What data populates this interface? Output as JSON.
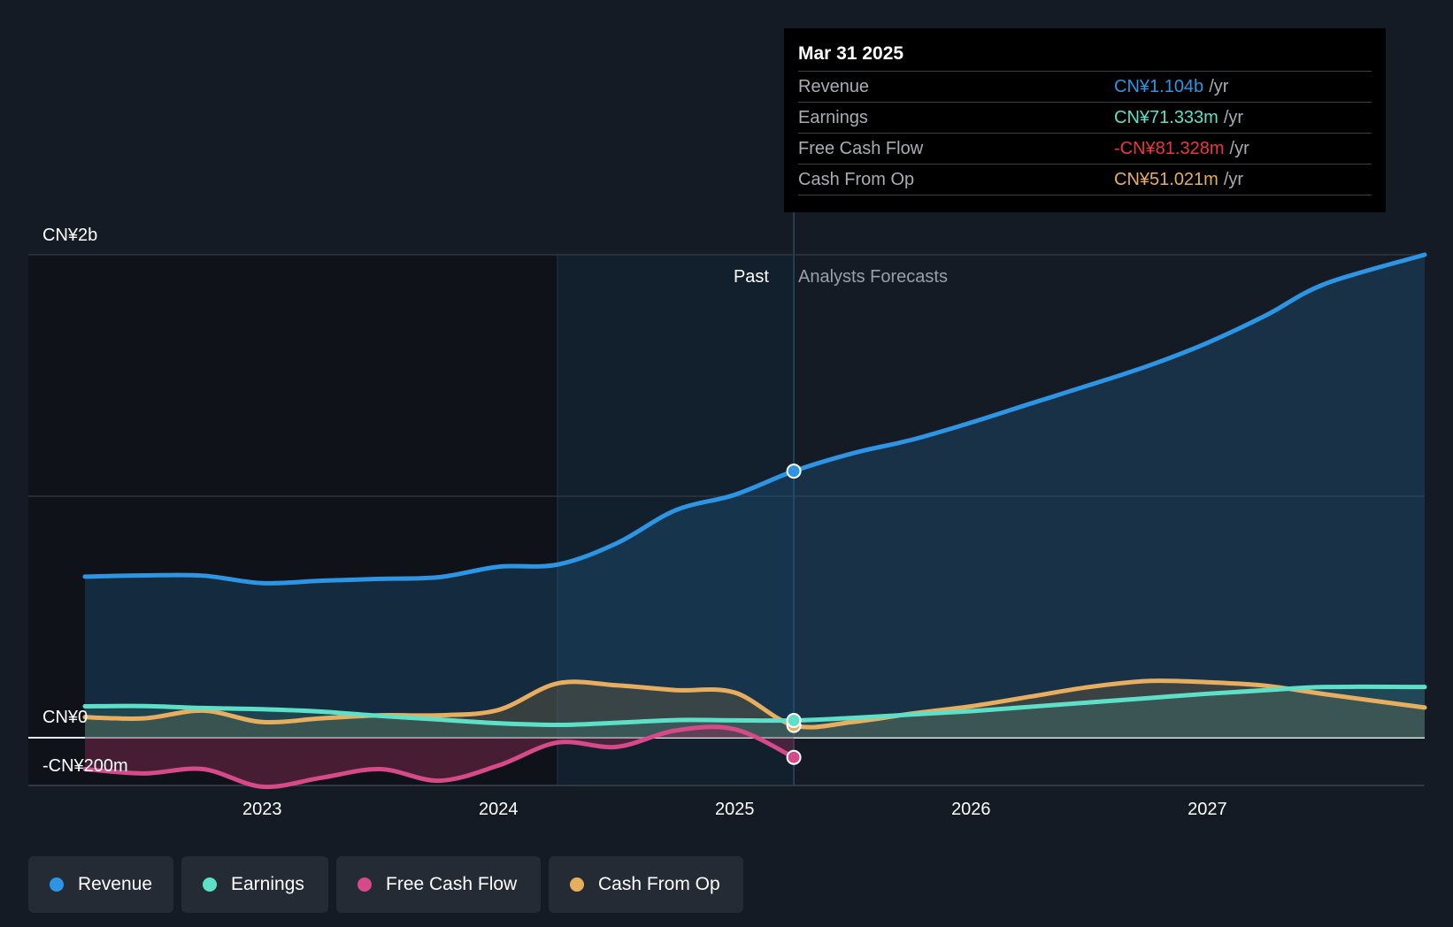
{
  "chart_data": {
    "type": "line",
    "title": "",
    "currency_axis": {
      "top_label": "CN¥2b",
      "zero_label": "CN¥0",
      "bottom_label": "-CN¥200m",
      "ylim": [
        -200,
        2000
      ],
      "unit": "CN¥ millions"
    },
    "x_ticks": [
      "2023",
      "2024",
      "2025",
      "2026",
      "2027"
    ],
    "x_range": [
      2022.25,
      2027.92
    ],
    "past_label": "Past",
    "forecast_label": "Analysts Forecasts",
    "present_x": 2025.25,
    "highlight_start_x": 2024.25,
    "series": [
      {
        "name": "Revenue",
        "color": "#2d95e3",
        "points": [
          [
            2022.25,
            667
          ],
          [
            2022.5,
            672
          ],
          [
            2022.75,
            671
          ],
          [
            2023.0,
            640
          ],
          [
            2023.25,
            650
          ],
          [
            2023.5,
            658
          ],
          [
            2023.75,
            665
          ],
          [
            2024.0,
            708
          ],
          [
            2024.25,
            717
          ],
          [
            2024.5,
            805
          ],
          [
            2024.75,
            942
          ],
          [
            2025.0,
            1006
          ],
          [
            2025.25,
            1104
          ]
        ],
        "forecast": [
          [
            2025.25,
            1104
          ],
          [
            2025.5,
            1178
          ],
          [
            2025.75,
            1234
          ],
          [
            2026.0,
            1305
          ],
          [
            2026.25,
            1383
          ],
          [
            2026.5,
            1460
          ],
          [
            2026.75,
            1540
          ],
          [
            2027.0,
            1635
          ],
          [
            2027.25,
            1750
          ],
          [
            2027.5,
            1880
          ],
          [
            2027.92,
            2000
          ]
        ]
      },
      {
        "name": "Earnings",
        "color": "#5ee0c8",
        "points": [
          [
            2022.25,
            130
          ],
          [
            2022.5,
            131
          ],
          [
            2022.75,
            123
          ],
          [
            2023.0,
            118
          ],
          [
            2023.25,
            108
          ],
          [
            2023.5,
            90
          ],
          [
            2023.75,
            75
          ],
          [
            2024.0,
            60
          ],
          [
            2024.25,
            53
          ],
          [
            2024.5,
            62
          ],
          [
            2024.75,
            73
          ],
          [
            2025.0,
            72
          ],
          [
            2025.25,
            71.333
          ]
        ],
        "forecast": [
          [
            2025.25,
            71.333
          ],
          [
            2025.5,
            82
          ],
          [
            2025.75,
            96
          ],
          [
            2026.0,
            110
          ],
          [
            2026.25,
            128
          ],
          [
            2026.5,
            146
          ],
          [
            2026.75,
            164
          ],
          [
            2027.0,
            182
          ],
          [
            2027.25,
            197
          ],
          [
            2027.5,
            210
          ],
          [
            2027.92,
            210
          ]
        ]
      },
      {
        "name": "Free Cash Flow",
        "color": "#d64a8a",
        "points": [
          [
            2022.25,
            -130
          ],
          [
            2022.5,
            -148
          ],
          [
            2022.75,
            -130
          ],
          [
            2023.0,
            -203
          ],
          [
            2023.25,
            -166
          ],
          [
            2023.5,
            -130
          ],
          [
            2023.75,
            -178
          ],
          [
            2024.0,
            -115
          ],
          [
            2024.25,
            -20
          ],
          [
            2024.5,
            -38
          ],
          [
            2024.75,
            30
          ],
          [
            2025.0,
            35
          ],
          [
            2025.25,
            -81.328
          ]
        ],
        "forecast": []
      },
      {
        "name": "Cash From Op",
        "color": "#e8ae5f",
        "points": [
          [
            2022.25,
            85
          ],
          [
            2022.5,
            80
          ],
          [
            2022.75,
            112
          ],
          [
            2023.0,
            65
          ],
          [
            2023.25,
            80
          ],
          [
            2023.5,
            93
          ],
          [
            2023.75,
            93
          ],
          [
            2024.0,
            115
          ],
          [
            2024.25,
            225
          ],
          [
            2024.5,
            217
          ],
          [
            2024.75,
            197
          ],
          [
            2025.0,
            187
          ],
          [
            2025.25,
            51.021
          ]
        ],
        "forecast": [
          [
            2025.25,
            51.021
          ],
          [
            2025.5,
            65
          ],
          [
            2025.75,
            100
          ],
          [
            2026.0,
            130
          ],
          [
            2026.25,
            170
          ],
          [
            2026.5,
            210
          ],
          [
            2026.75,
            235
          ],
          [
            2027.0,
            230
          ],
          [
            2027.25,
            215
          ],
          [
            2027.5,
            180
          ],
          [
            2027.92,
            125
          ]
        ]
      }
    ]
  },
  "tooltip": {
    "date": "Mar 31 2025",
    "rows": [
      {
        "name": "Revenue",
        "value": "CN¥1.104b",
        "unit": "/yr",
        "color": "#2d95e3"
      },
      {
        "name": "Earnings",
        "value": "CN¥71.333m",
        "unit": "/yr",
        "color": "#5ee0c8"
      },
      {
        "name": "Free Cash Flow",
        "value": "-CN¥81.328m",
        "unit": "/yr",
        "color": "#e8393f"
      },
      {
        "name": "Cash From Op",
        "value": "CN¥51.021m",
        "unit": "/yr",
        "color": "#e8ae5f"
      }
    ]
  },
  "legend": [
    {
      "label": "Revenue",
      "color": "#2d95e3"
    },
    {
      "label": "Earnings",
      "color": "#5ee0c8"
    },
    {
      "label": "Free Cash Flow",
      "color": "#d64a8a"
    },
    {
      "label": "Cash From Op",
      "color": "#e8ae5f"
    }
  ]
}
